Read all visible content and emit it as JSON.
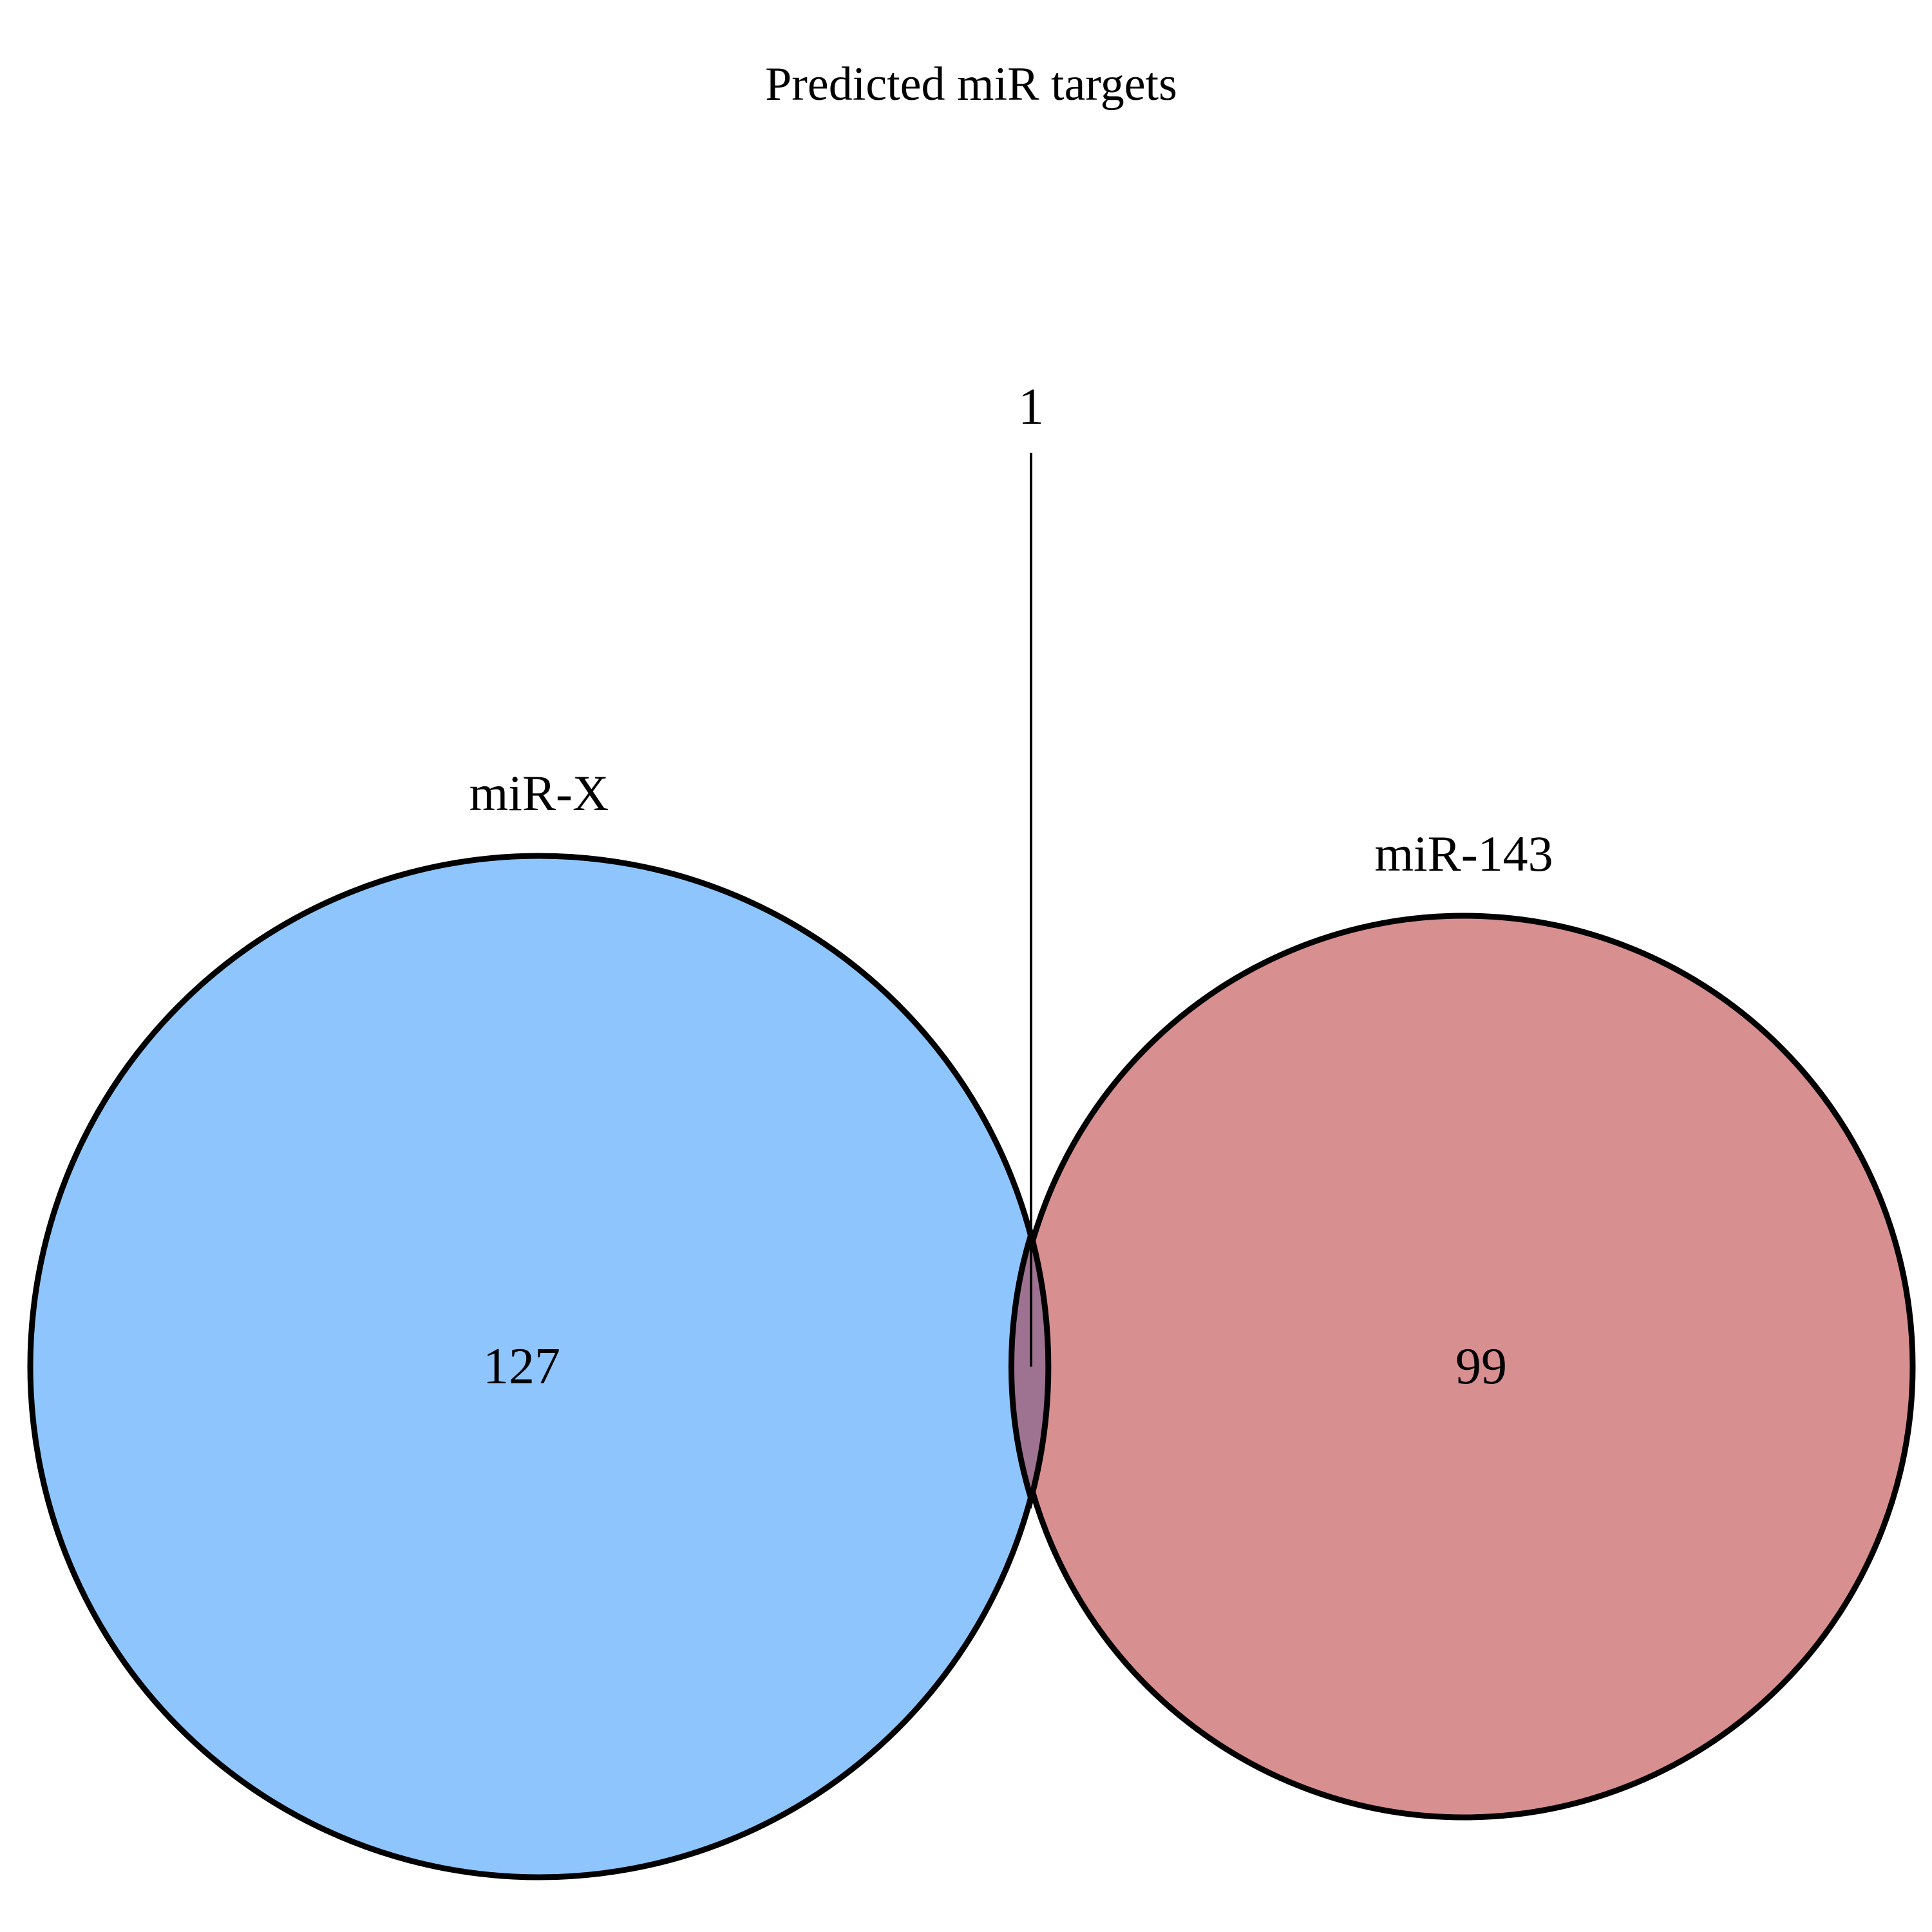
{
  "title": "Predicted miR targets",
  "sets": [
    {
      "label": "miR-X",
      "count": "127",
      "fill_color": "#8fc5fd"
    },
    {
      "label": "miR-143",
      "count": "99",
      "fill_color": "#d78f90"
    }
  ],
  "intersection": {
    "count": "1",
    "fill_color": "#9e7291"
  },
  "outline_color": "#000000"
}
